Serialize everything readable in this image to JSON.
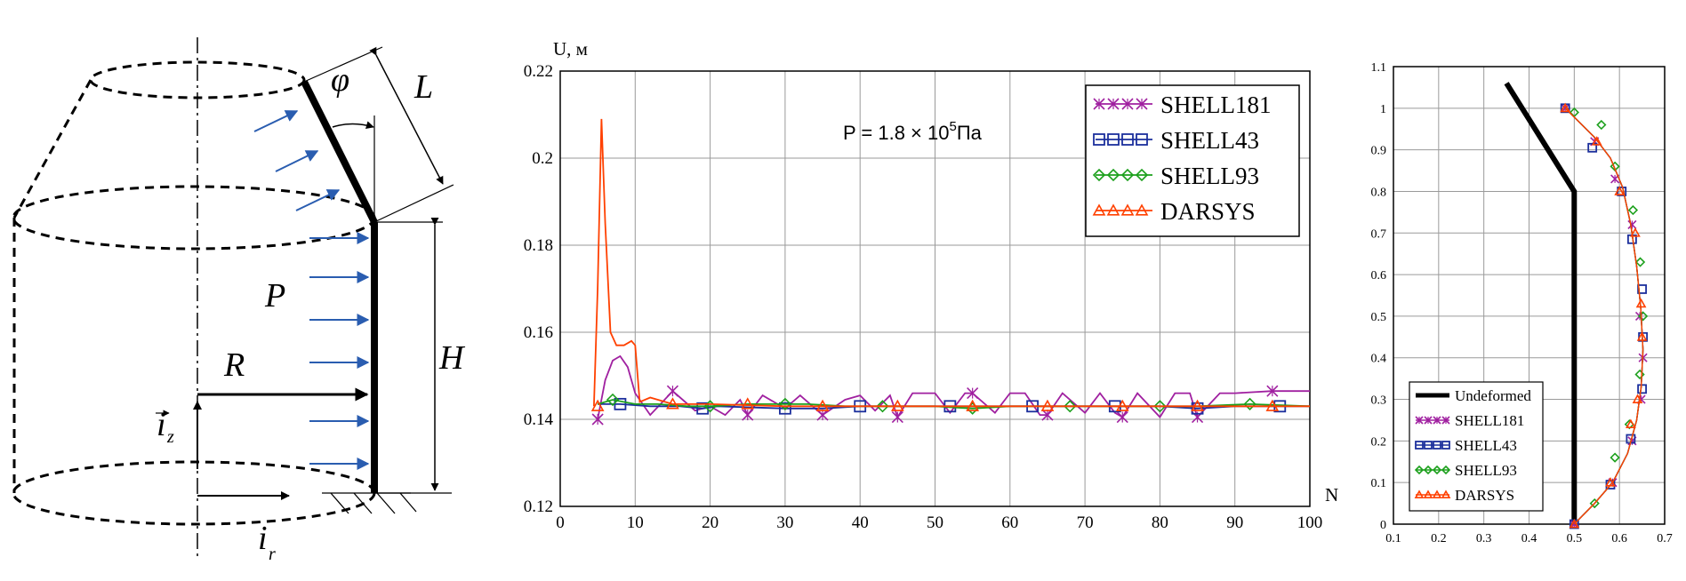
{
  "panel1": {
    "labels": {
      "phi": "φ",
      "L": "L",
      "P": "P",
      "R": "R",
      "H": "H",
      "iz": "i",
      "iz_sub": "z",
      "ir": "i",
      "ir_sub": "r"
    }
  },
  "chart_data": [
    {
      "type": "line",
      "ylabel": "U, м",
      "xlabel": "N",
      "annotation": "P = 1.8 × 10⁵ Па",
      "annotation_parts": {
        "prefix": "P = 1.8 × 10",
        "sup": "5",
        "suffix": "Па"
      },
      "xlim": [
        0,
        100
      ],
      "ylim": [
        0.12,
        0.22
      ],
      "x_ticks": [
        "0",
        "10",
        "20",
        "30",
        "40",
        "50",
        "60",
        "70",
        "80",
        "90",
        "100"
      ],
      "y_ticks": [
        "0.12",
        "0.14",
        "0.16",
        "0.18",
        "0.2",
        "0.22"
      ],
      "grid": true,
      "legend_position": "top-right",
      "series": [
        {
          "name": "SHELL181",
          "color": "#a020a0",
          "marker": "x",
          "x": [
            5,
            6,
            7,
            8,
            9,
            10,
            12,
            15,
            18,
            20,
            22,
            24,
            25,
            27,
            30,
            32,
            35,
            38,
            40,
            42,
            44,
            45,
            47,
            50,
            52,
            54,
            55,
            58,
            60,
            62,
            64,
            65,
            67,
            70,
            72,
            74,
            75,
            77,
            80,
            82,
            84,
            85,
            88,
            90,
            95,
            100
          ],
          "y": [
            0.14,
            0.149,
            0.1535,
            0.1545,
            0.152,
            0.146,
            0.141,
            0.1465,
            0.142,
            0.143,
            0.141,
            0.1445,
            0.141,
            0.1455,
            0.1425,
            0.1455,
            0.141,
            0.1445,
            0.1455,
            0.142,
            0.1455,
            0.1405,
            0.146,
            0.146,
            0.1415,
            0.146,
            0.146,
            0.1415,
            0.146,
            0.146,
            0.141,
            0.141,
            0.146,
            0.1415,
            0.146,
            0.1415,
            0.1405,
            0.146,
            0.1405,
            0.146,
            0.146,
            0.1405,
            0.146,
            0.146,
            0.1465,
            0.1465
          ],
          "markers_x": [
            5,
            15,
            25,
            35,
            45,
            55,
            65,
            75,
            85,
            95
          ],
          "markers_y": [
            0.14,
            0.1465,
            0.141,
            0.141,
            0.1405,
            0.146,
            0.141,
            0.1405,
            0.1405,
            0.1465
          ]
        },
        {
          "name": "SHELL43",
          "color": "#1c2f9c",
          "marker": "square",
          "x": [
            5,
            8,
            12,
            16,
            19,
            21,
            30,
            35,
            40,
            45,
            52,
            60,
            63,
            70,
            74,
            80,
            85,
            90,
            96,
            100
          ],
          "y": [
            0.1435,
            0.1435,
            0.143,
            0.143,
            0.1425,
            0.143,
            0.1425,
            0.1425,
            0.143,
            0.143,
            0.143,
            0.143,
            0.143,
            0.143,
            0.143,
            0.143,
            0.1425,
            0.143,
            0.143,
            0.143
          ],
          "markers_x": [
            8,
            19,
            30,
            40,
            52,
            63,
            74,
            85,
            96
          ],
          "markers_y": [
            0.1435,
            0.1425,
            0.1425,
            0.143,
            0.143,
            0.143,
            0.143,
            0.1425,
            0.143
          ]
        },
        {
          "name": "SHELL93",
          "color": "#1ca01c",
          "marker": "diamond",
          "x": [
            5,
            7,
            10,
            13,
            17,
            20,
            25,
            30,
            33,
            38,
            45,
            50,
            55,
            60,
            68,
            75,
            80,
            85,
            92,
            100
          ],
          "y": [
            0.1435,
            0.1445,
            0.1435,
            0.1435,
            0.143,
            0.143,
            0.1435,
            0.1435,
            0.1435,
            0.143,
            0.143,
            0.143,
            0.1425,
            0.143,
            0.143,
            0.143,
            0.143,
            0.143,
            0.1435,
            0.143
          ],
          "markers_x": [
            7,
            20,
            30,
            43,
            55,
            68,
            80,
            92
          ],
          "markers_y": [
            0.1445,
            0.143,
            0.1435,
            0.143,
            0.1425,
            0.143,
            0.143,
            0.1435
          ]
        },
        {
          "name": "DARSYS",
          "color": "#ff4000",
          "marker": "triangle",
          "x": [
            4.5,
            5,
            5.5,
            6,
            6.7,
            7.5,
            8.5,
            9.5,
            10,
            10.6,
            12,
            15,
            20,
            30,
            40,
            50,
            60,
            70,
            80,
            90,
            100
          ],
          "y": [
            0.143,
            0.17,
            0.209,
            0.185,
            0.16,
            0.157,
            0.157,
            0.158,
            0.157,
            0.144,
            0.145,
            0.1435,
            0.1435,
            0.143,
            0.143,
            0.143,
            0.143,
            0.143,
            0.143,
            0.143,
            0.143
          ],
          "markers_x": [
            5,
            15,
            25,
            35,
            45,
            55,
            65,
            75,
            85,
            95
          ],
          "markers_y": [
            0.143,
            0.1435,
            0.1435,
            0.143,
            0.143,
            0.143,
            0.143,
            0.143,
            0.143,
            0.143
          ]
        }
      ]
    },
    {
      "type": "line",
      "xlim": [
        0.1,
        0.7
      ],
      "ylim": [
        0,
        1.1
      ],
      "x_ticks": [
        "0.1",
        "0.2",
        "0.3",
        "0.4",
        "0.5",
        "0.6",
        "0.7"
      ],
      "y_ticks": [
        "0",
        "0.1",
        "0.2",
        "0.3",
        "0.4",
        "0.5",
        "0.6",
        "0.7",
        "0.8",
        "0.9",
        "1",
        "1.1"
      ],
      "grid": true,
      "legend_position": "bottom-left",
      "series": [
        {
          "name": "Undeformed",
          "color": "#000000",
          "marker": "none",
          "x": [
            0.5,
            0.5,
            0.35
          ],
          "y": [
            0,
            0.8,
            1.06
          ]
        },
        {
          "name": "SHELL181",
          "color": "#a020a0",
          "marker": "x",
          "x": [
            0.5,
            0.545,
            0.585,
            0.618,
            0.638,
            0.648,
            0.652,
            0.647,
            0.638,
            0.625,
            0.607,
            0.58,
            0.545,
            0.48
          ],
          "y": [
            0,
            0.05,
            0.1,
            0.17,
            0.25,
            0.33,
            0.42,
            0.52,
            0.62,
            0.72,
            0.81,
            0.88,
            0.93,
            1.0
          ],
          "markers_x": [
            0.5,
            0.585,
            0.628,
            0.648,
            0.652,
            0.645,
            0.628,
            0.59,
            0.545,
            0.48
          ],
          "markers_y": [
            0,
            0.1,
            0.2,
            0.3,
            0.4,
            0.5,
            0.72,
            0.83,
            0.92,
            1.0
          ]
        },
        {
          "name": "SHELL43",
          "color": "#1c2f9c",
          "marker": "square",
          "x": [
            0.5,
            0.545,
            0.585,
            0.618,
            0.638,
            0.648,
            0.652,
            0.647,
            0.638,
            0.625,
            0.607,
            0.58,
            0.545,
            0.48
          ],
          "y": [
            0,
            0.05,
            0.1,
            0.17,
            0.25,
            0.33,
            0.42,
            0.52,
            0.62,
            0.72,
            0.81,
            0.88,
            0.93,
            1.0
          ],
          "markers_x": [
            0.5,
            0.58,
            0.625,
            0.65,
            0.652,
            0.65,
            0.628,
            0.605,
            0.54,
            0.48
          ],
          "markers_y": [
            0,
            0.095,
            0.205,
            0.325,
            0.45,
            0.565,
            0.685,
            0.8,
            0.905,
            1.0
          ]
        },
        {
          "name": "SHELL93",
          "color": "#1ca01c",
          "marker": "diamond",
          "x": [
            0.5,
            0.545,
            0.585,
            0.618,
            0.638,
            0.648,
            0.652,
            0.647,
            0.638,
            0.625,
            0.607,
            0.58,
            0.545,
            0.48
          ],
          "y": [
            0,
            0.05,
            0.1,
            0.17,
            0.25,
            0.33,
            0.42,
            0.52,
            0.62,
            0.72,
            0.81,
            0.88,
            0.93,
            1.0
          ],
          "markers_x": [
            0.545,
            0.59,
            0.622,
            0.645,
            0.652,
            0.646,
            0.63,
            0.59,
            0.56,
            0.5
          ],
          "markers_y": [
            0.05,
            0.16,
            0.24,
            0.36,
            0.5,
            0.63,
            0.755,
            0.86,
            0.96,
            0.99
          ]
        },
        {
          "name": "DARSYS",
          "color": "#ff4000",
          "marker": "triangle",
          "x": [
            0.5,
            0.545,
            0.585,
            0.618,
            0.638,
            0.648,
            0.652,
            0.647,
            0.638,
            0.625,
            0.607,
            0.58,
            0.545,
            0.48
          ],
          "y": [
            0,
            0.05,
            0.1,
            0.17,
            0.25,
            0.33,
            0.42,
            0.52,
            0.62,
            0.72,
            0.81,
            0.88,
            0.93,
            1.0
          ],
          "markers_x": [
            0.5,
            0.58,
            0.625,
            0.64,
            0.65,
            0.648,
            0.635,
            0.6,
            0.55,
            0.48
          ],
          "markers_y": [
            0,
            0.1,
            0.24,
            0.3,
            0.45,
            0.53,
            0.7,
            0.8,
            0.92,
            1.0
          ]
        }
      ]
    }
  ]
}
